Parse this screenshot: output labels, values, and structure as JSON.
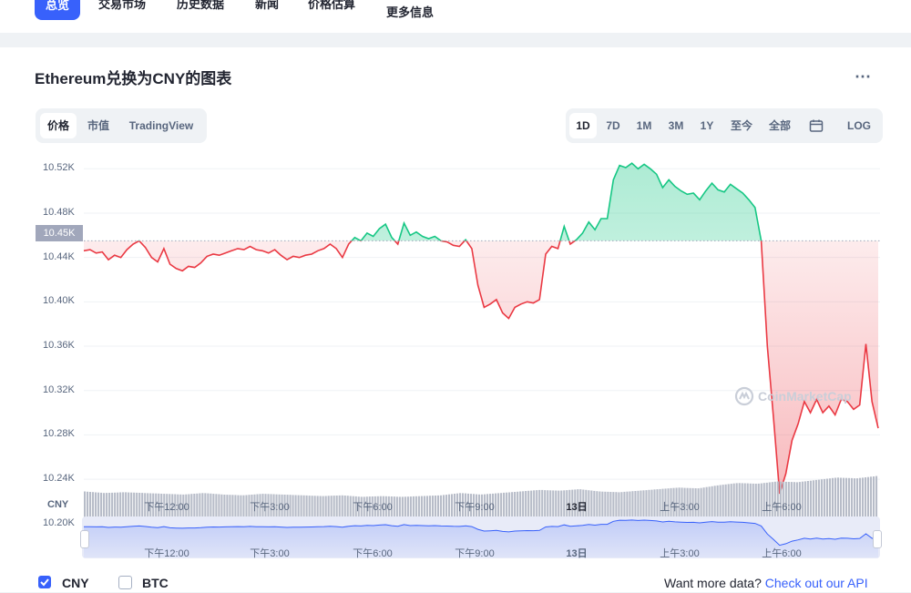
{
  "nav": {
    "tabs": [
      "总览",
      "交易市场",
      "历史数据",
      "新闻",
      "价格估算",
      "更多信息"
    ]
  },
  "card": {
    "title": "Ethereum兑换为CNY的图表",
    "more_icon": "⋯"
  },
  "chart_tabs": [
    "价格",
    "市值",
    "TradingView"
  ],
  "range_tabs": [
    "1D",
    "7D",
    "1M",
    "3M",
    "1Y",
    "至今",
    "全部"
  ],
  "calendar_icon": "calendar-icon",
  "log_label": "LOG",
  "current_price_badge": "10.45K",
  "watermark": "CoinMarketCap",
  "colors": {
    "up": "#16c784",
    "down": "#ea3943",
    "accent": "#3861fb",
    "navigator": "#3861fb"
  },
  "chart_data": {
    "type": "line",
    "y_unit_label": "CNY",
    "y_ticks": [
      "10.52K",
      "10.48K",
      "10.44K",
      "10.40K",
      "10.36K",
      "10.32K",
      "10.28K",
      "10.24K",
      "10.20K"
    ],
    "x_ticks": [
      "下午12:00",
      "下午3:00",
      "下午6:00",
      "下午9:00",
      "13日",
      "上午3:00",
      "上午6:00"
    ],
    "ylim": [
      10.19,
      10.535
    ],
    "baseline": 10.455,
    "series": [
      {
        "values": [
          10.446,
          10.447,
          10.444,
          10.445,
          10.438,
          10.442,
          10.44,
          10.447,
          10.452,
          10.455,
          10.449,
          10.44,
          10.436,
          10.448,
          10.434,
          10.43,
          10.428,
          10.432,
          10.431,
          10.435,
          10.441,
          10.443,
          10.442,
          10.444,
          10.446,
          10.448,
          10.447,
          10.45,
          10.447,
          10.446,
          10.444,
          10.447,
          10.442,
          10.438,
          10.441,
          10.44,
          10.442,
          10.443,
          10.446,
          10.448,
          10.452,
          10.448,
          10.44,
          10.452,
          10.458,
          10.455,
          10.462,
          10.459,
          10.466,
          10.47,
          10.458,
          10.452,
          10.471,
          10.46,
          10.463,
          10.459,
          10.457,
          10.459,
          10.455,
          10.454,
          10.451,
          10.45,
          10.456,
          10.448,
          10.415,
          10.395,
          10.398,
          10.402,
          10.39,
          10.385,
          10.395,
          10.398,
          10.4,
          10.399,
          10.402,
          10.443,
          10.45,
          10.448,
          10.468,
          10.452,
          10.456,
          10.462,
          10.472,
          10.465,
          10.475,
          10.475,
          10.51,
          10.523,
          10.521,
          10.525,
          10.52,
          10.524,
          10.52,
          10.515,
          10.503,
          10.51,
          10.504,
          10.5,
          10.497,
          10.498,
          10.492,
          10.5,
          10.507,
          10.501,
          10.499,
          10.506,
          10.502,
          10.498,
          10.492,
          10.485,
          10.455,
          10.36,
          10.295,
          10.227,
          10.245,
          10.275,
          10.29,
          10.31,
          10.3,
          10.312,
          10.3,
          10.306,
          10.298,
          10.312,
          10.31,
          10.303,
          10.307,
          10.362,
          10.31,
          10.286
        ]
      }
    ],
    "volume_values": [
      0.62,
      0.6,
      0.61,
      0.6,
      0.59,
      0.58,
      0.6,
      0.58,
      0.57,
      0.59,
      0.58,
      0.57,
      0.56,
      0.57,
      0.55,
      0.56,
      0.55,
      0.56,
      0.57,
      0.6,
      0.58,
      0.6,
      0.62,
      0.64,
      0.63,
      0.65,
      0.62,
      0.61,
      0.63,
      0.65,
      0.67,
      0.66,
      0.7,
      0.73,
      0.72,
      0.75,
      0.74,
      0.77,
      0.8,
      0.79,
      0.82
    ]
  },
  "navigator_data": {
    "x_ticks": [
      "下午12:00",
      "下午3:00",
      "下午6:00",
      "下午9:00",
      "13日",
      "上午3:00",
      "上午6:00"
    ]
  },
  "footer": {
    "options": [
      {
        "label": "CNY",
        "checked": true
      },
      {
        "label": "BTC",
        "checked": false
      }
    ],
    "prompt": "Want more data?",
    "link": "Check out our API"
  }
}
